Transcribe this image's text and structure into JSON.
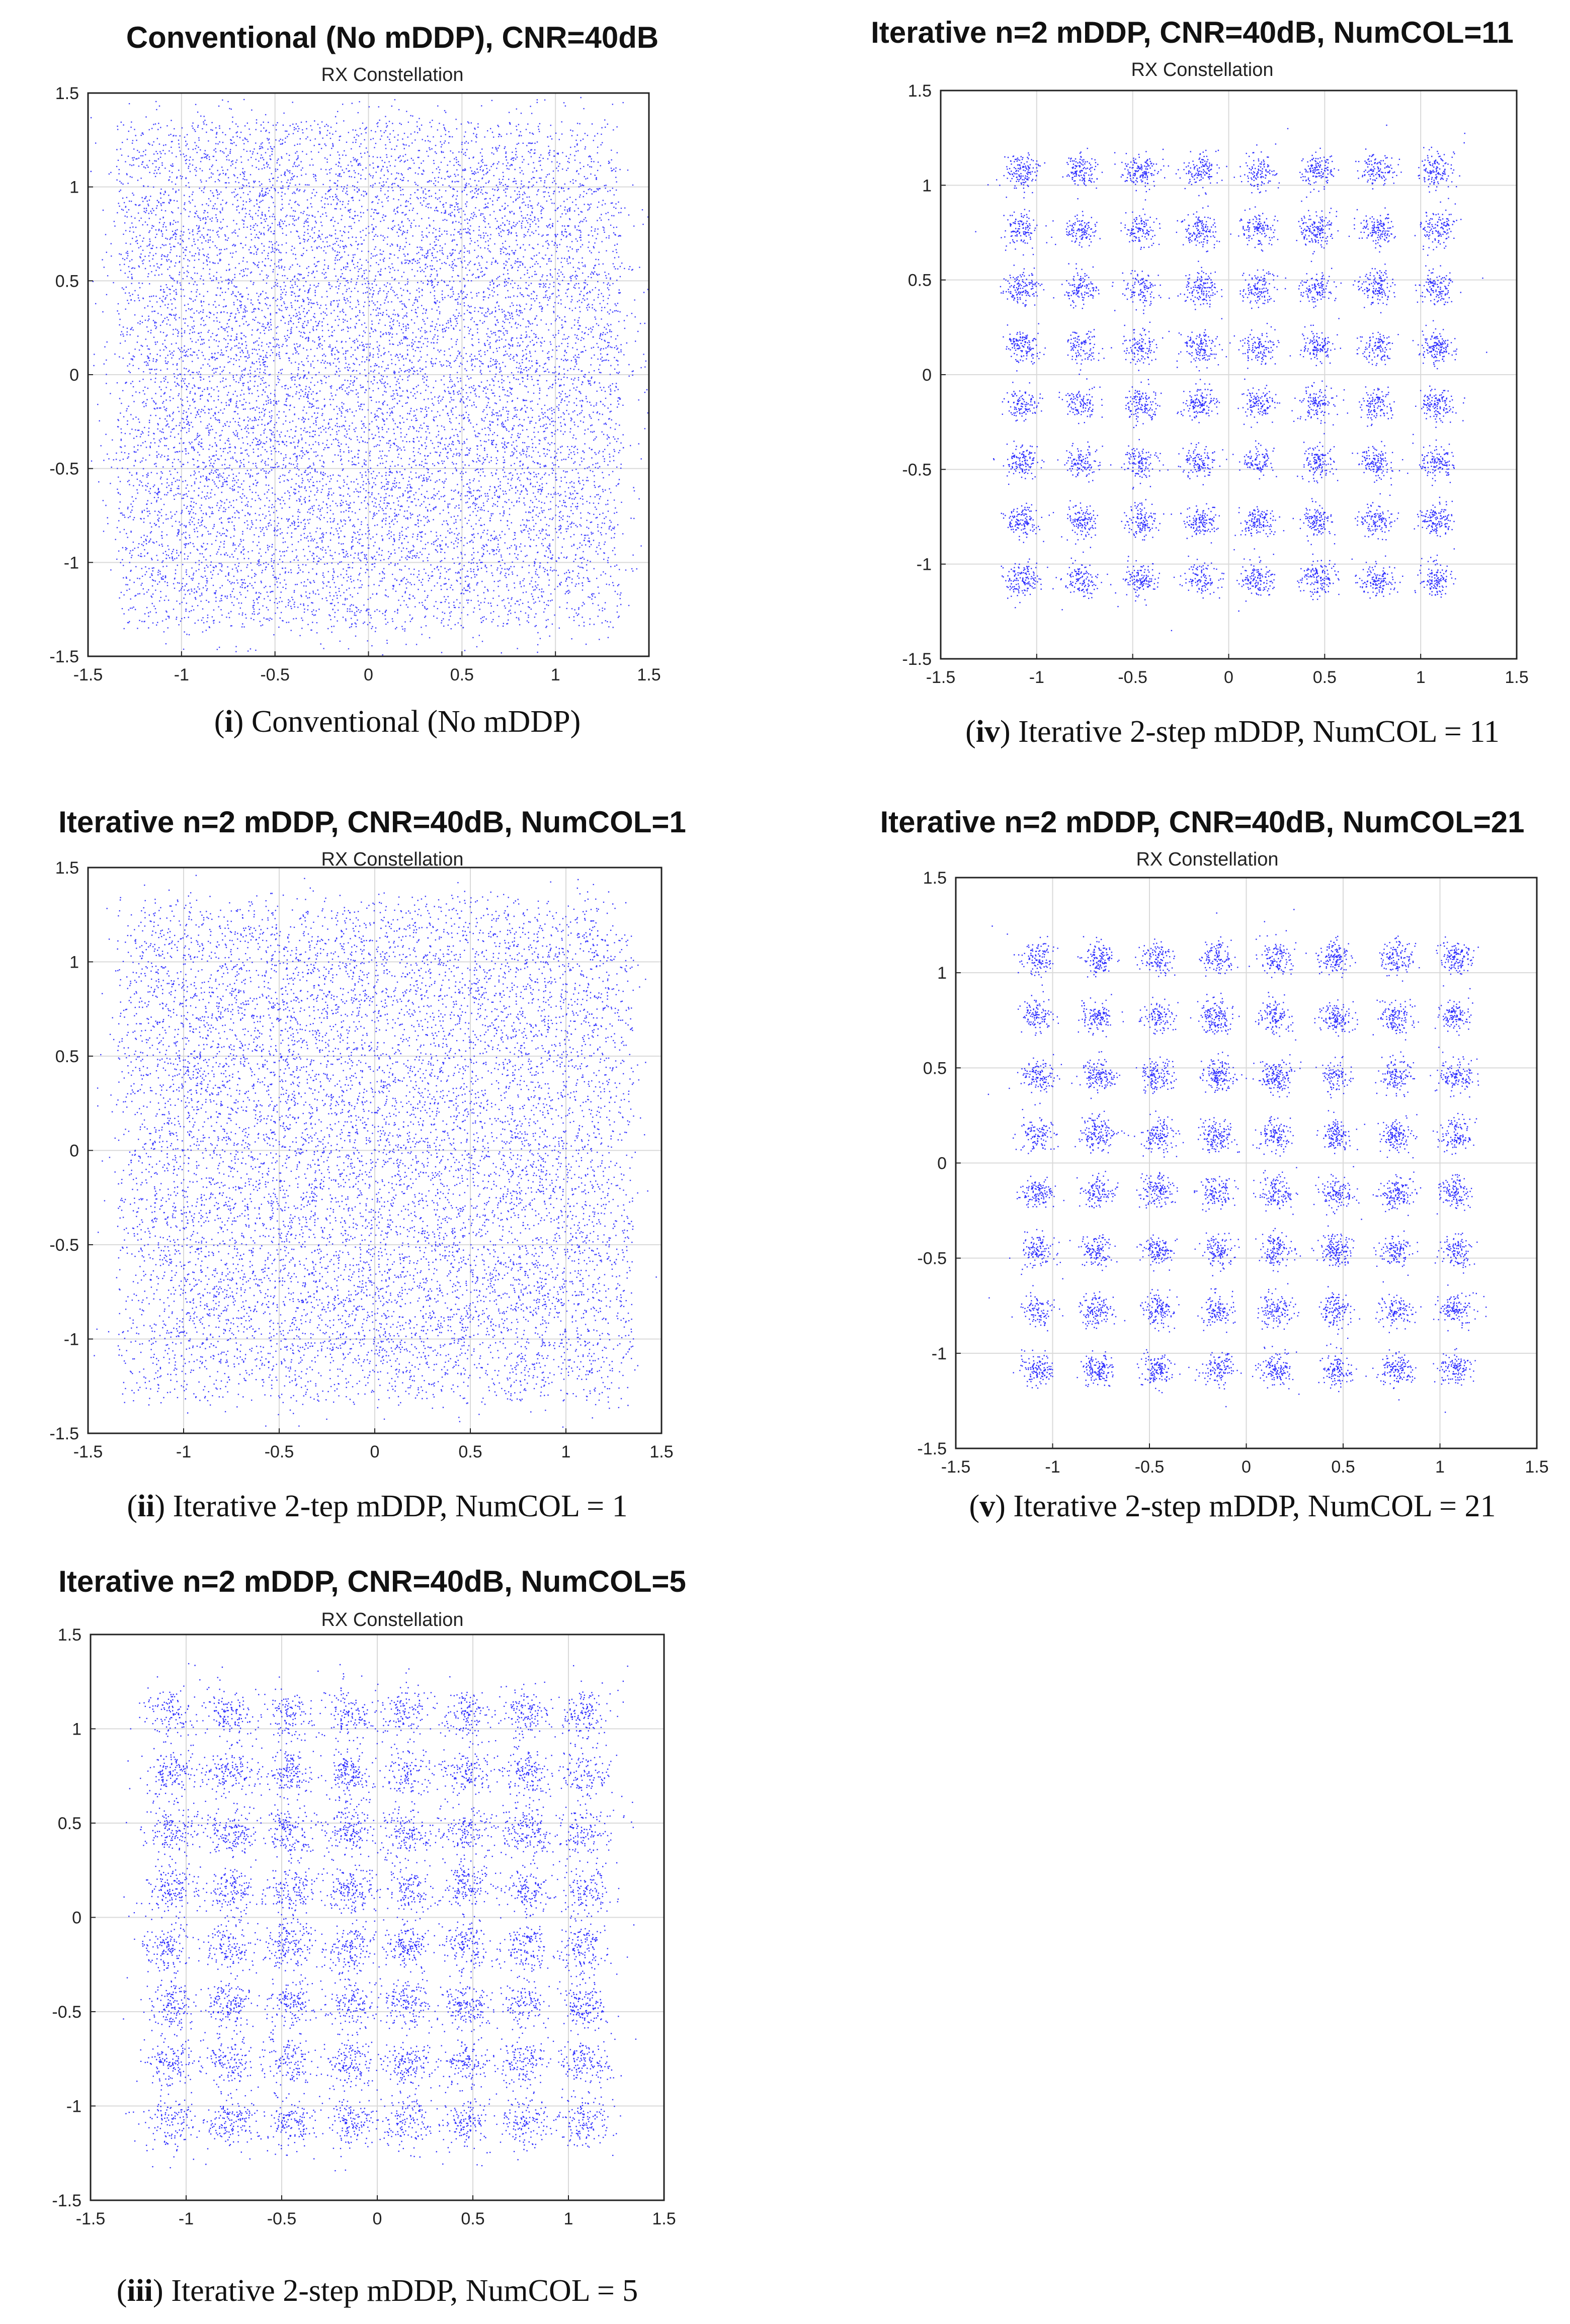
{
  "chart_data": [
    {
      "id": "i",
      "type": "scatter",
      "title": "Conventional (No mDDP), CNR=40dB",
      "subtitle": "RX Constellation",
      "caption_tag": "i",
      "caption_text": "Conventional (No mDDP)",
      "xlim": [
        -1.5,
        1.5
      ],
      "ylim": [
        -1.5,
        1.5
      ],
      "xticks": [
        "-1.5",
        "-1",
        "-0.5",
        "0",
        "0.5",
        "1",
        "1.5"
      ],
      "yticks": [
        "1.5",
        "1",
        "0.5",
        "0",
        "-0.5",
        "-1",
        "-1.5"
      ],
      "grid": true,
      "constellation_levels": [
        -1.08,
        -0.77,
        -0.46,
        -0.15,
        0.15,
        0.46,
        0.77,
        1.08
      ],
      "cluster_spread": 0.2,
      "uniform_fraction": 0.45,
      "point_count": 12000,
      "point_color": "#2b2bff"
    },
    {
      "id": "ii",
      "type": "scatter",
      "title": "Iterative n=2 mDDP, CNR=40dB, NumCOL=1",
      "subtitle": "RX Constellation",
      "caption_tag": "ii",
      "caption_text": "Iterative 2-tep mDDP, NumCOL = 1",
      "xlim": [
        -1.5,
        1.5
      ],
      "ylim": [
        -1.5,
        1.5
      ],
      "xticks": [
        "-1.5",
        "-1",
        "-0.5",
        "0",
        "0.5",
        "1",
        "1.5"
      ],
      "yticks": [
        "1.5",
        "1",
        "0.5",
        "0",
        "-0.5",
        "-1",
        "-1.5"
      ],
      "grid": true,
      "constellation_levels": [
        -1.08,
        -0.77,
        -0.46,
        -0.15,
        0.15,
        0.46,
        0.77,
        1.08
      ],
      "cluster_spread": 0.14,
      "uniform_fraction": 0.3,
      "point_count": 10000,
      "point_color": "#2222ff"
    },
    {
      "id": "iii",
      "type": "scatter",
      "title": "Iterative n=2 mDDP, CNR=40dB, NumCOL=5",
      "subtitle": "RX Constellation",
      "caption_tag": "iii",
      "caption_text": "Iterative 2-step mDDP, NumCOL = 5",
      "xlim": [
        -1.5,
        1.5
      ],
      "ylim": [
        -1.5,
        1.5
      ],
      "xticks": [
        "-1.5",
        "-1",
        "-0.5",
        "0",
        "0.5",
        "1",
        "1.5"
      ],
      "yticks": [
        "1.5",
        "1",
        "0.5",
        "0",
        "-0.5",
        "-1",
        "-1.5"
      ],
      "grid": true,
      "constellation_levels": [
        -1.08,
        -0.77,
        -0.46,
        -0.15,
        0.15,
        0.46,
        0.77,
        1.08
      ],
      "cluster_spread": 0.065,
      "uniform_fraction": 0.05,
      "point_count": 9000,
      "point_color": "#1a1aff"
    },
    {
      "id": "iv",
      "type": "scatter",
      "title": "Iterative n=2 mDDP, CNR=40dB, NumCOL=11",
      "subtitle": "RX Constellation",
      "caption_tag": "iv",
      "caption_text": "Iterative 2-step mDDP, NumCOL = 11",
      "xlim": [
        -1.5,
        1.5
      ],
      "ylim": [
        -1.5,
        1.5
      ],
      "xticks": [
        "-1.5",
        "-1",
        "-0.5",
        "0",
        "0.5",
        "1",
        "1.5"
      ],
      "yticks": [
        "1.5",
        "1",
        "0.5",
        "0",
        "-0.5",
        "-1",
        "-1.5"
      ],
      "grid": true,
      "constellation_levels": [
        -1.08,
        -0.77,
        -0.46,
        -0.15,
        0.15,
        0.46,
        0.77,
        1.08
      ],
      "cluster_spread": 0.045,
      "uniform_fraction": 0.008,
      "point_count": 8000,
      "point_color": "#1a1aff"
    },
    {
      "id": "v",
      "type": "scatter",
      "title": "Iterative n=2 mDDP, CNR=40dB, NumCOL=21",
      "subtitle": "RX Constellation",
      "caption_tag": "v",
      "caption_text": "Iterative 2-step mDDP, NumCOL = 21",
      "xlim": [
        -1.5,
        1.5
      ],
      "ylim": [
        -1.5,
        1.5
      ],
      "xticks": [
        "-1.5",
        "-1",
        "-0.5",
        "0",
        "0.5",
        "1",
        "1.5"
      ],
      "yticks": [
        "1.5",
        "1",
        "0.5",
        "0",
        "-0.5",
        "-1",
        "-1.5"
      ],
      "grid": true,
      "constellation_levels": [
        -1.08,
        -0.77,
        -0.46,
        -0.15,
        0.15,
        0.46,
        0.77,
        1.08
      ],
      "cluster_spread": 0.043,
      "uniform_fraction": 0.006,
      "point_count": 8000,
      "point_color": "#1a1aff"
    }
  ]
}
